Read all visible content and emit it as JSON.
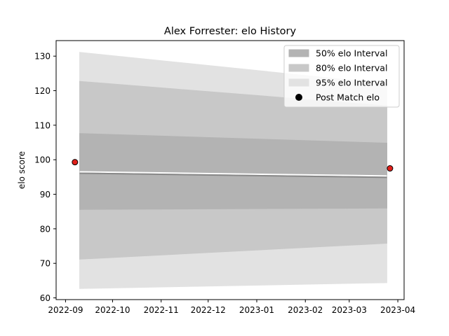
{
  "chart_data": {
    "type": "line",
    "title": "Alex Forrester: elo History",
    "xlabel": "",
    "ylabel": "elo score",
    "x_axis": {
      "type": "date",
      "range": [
        "2022-08-26",
        "2023-04-05"
      ],
      "tick_labels": [
        "2022-09",
        "2022-10",
        "2022-11",
        "2022-12",
        "2023-01",
        "2023-02",
        "2023-03",
        "2023-04"
      ]
    },
    "y_axis": {
      "range": [
        59.5,
        134.5
      ],
      "ticks": [
        60,
        70,
        80,
        90,
        100,
        110,
        120,
        130
      ]
    },
    "grid": false,
    "legend": {
      "placement": "upper right",
      "entries": [
        {
          "label": "50% elo Interval",
          "kind": "band",
          "color": "#b3b3b3"
        },
        {
          "label": "80% elo Interval",
          "kind": "band",
          "color": "#c8c8c8"
        },
        {
          "label": "95% elo Interval",
          "kind": "band",
          "color": "#e2e2e2"
        },
        {
          "label": "Post Match elo",
          "kind": "marker",
          "color": "#000000"
        }
      ]
    },
    "x": [
      "2022-09-10",
      "2023-03-25"
    ],
    "mean_line": {
      "values": [
        96.2,
        95.0
      ],
      "color": "#888888"
    },
    "intervals": [
      {
        "name": "95% elo Interval",
        "lower": [
          62.7,
          64.4
        ],
        "upper": [
          131.1,
          122.0
        ],
        "color": "#e2e2e2"
      },
      {
        "name": "80% elo Interval",
        "lower": [
          71.2,
          75.8
        ],
        "upper": [
          122.7,
          115.6
        ],
        "color": "#c8c8c8"
      },
      {
        "name": "50% elo Interval",
        "lower": [
          85.6,
          86.0
        ],
        "upper": [
          107.6,
          104.8
        ],
        "color": "#b3b3b3"
      }
    ],
    "points": {
      "name": "Post Match elo",
      "x": [
        "2022-09-07",
        "2023-03-27"
      ],
      "y": [
        99.3,
        97.5
      ],
      "fill": "#e0201b",
      "edge": "#000000"
    }
  }
}
